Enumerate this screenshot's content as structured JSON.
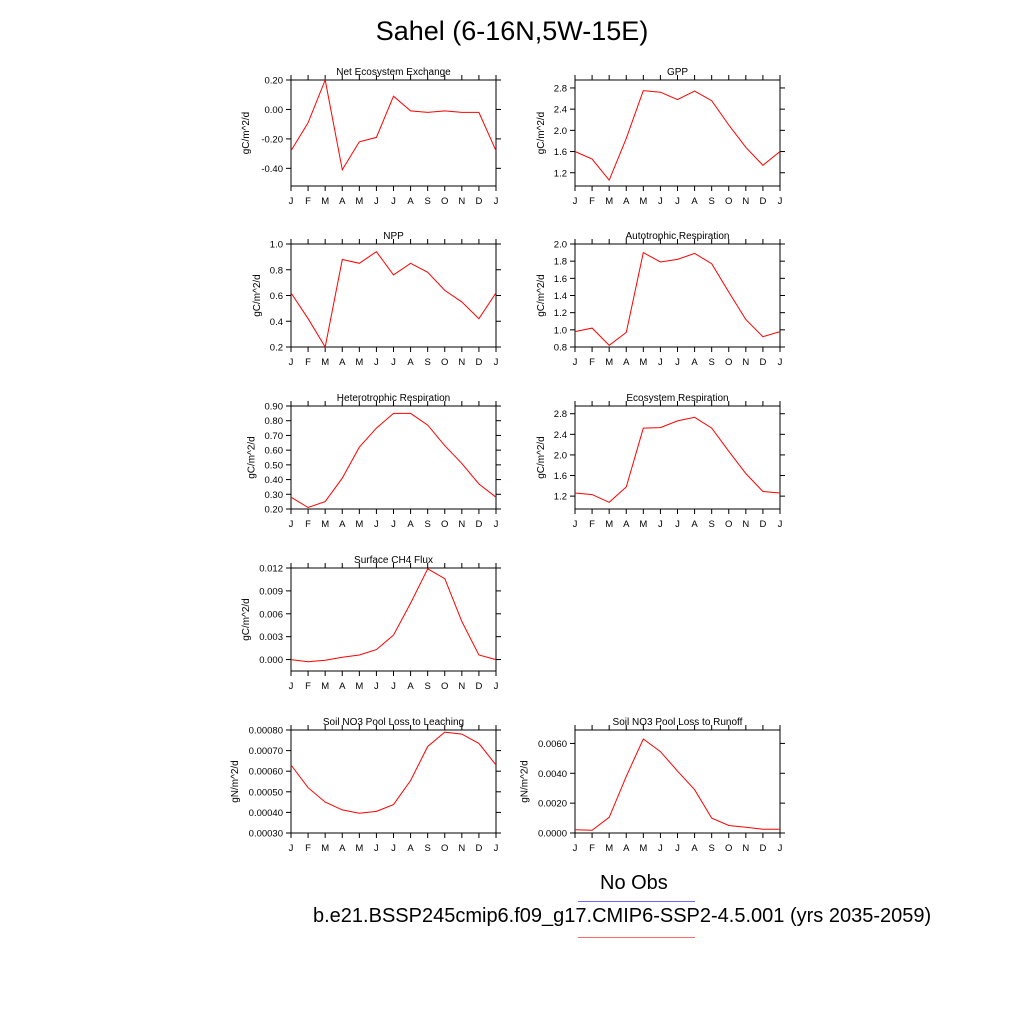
{
  "title": "Sahel (6-16N,5W-15E)",
  "legend": {
    "obs_label": "No Obs",
    "obs_color": "#6b6bff",
    "case_label": "b.e21.BSSP245cmip6.f09_g17.CMIP6-SSP2-4.5.001 (yrs 2035-2059)",
    "case_color": "#ff0000"
  },
  "chart_data": [
    {
      "type": "line",
      "title": "Net Ecosystem Exchange",
      "ylabel": "gC/m^2/d",
      "x": [
        "J",
        "F",
        "M",
        "A",
        "M",
        "J",
        "J",
        "A",
        "S",
        "O",
        "N",
        "D",
        "J"
      ],
      "values": [
        -0.28,
        -0.09,
        0.2,
        -0.41,
        -0.22,
        -0.19,
        0.09,
        -0.01,
        -0.02,
        -0.01,
        -0.02,
        -0.02,
        -0.28
      ],
      "ylim": [
        -0.52,
        0.2
      ],
      "yticks": [
        -0.4,
        -0.2,
        0.0,
        0.2
      ],
      "yticklabels": [
        "-0.40",
        "-0.20",
        "0.00",
        "0.20"
      ]
    },
    {
      "type": "line",
      "title": "GPP",
      "ylabel": "gC/m^2/d",
      "x": [
        "J",
        "F",
        "M",
        "A",
        "M",
        "J",
        "J",
        "A",
        "S",
        "O",
        "N",
        "D",
        "J"
      ],
      "values": [
        1.6,
        1.46,
        1.06,
        1.85,
        2.75,
        2.72,
        2.58,
        2.74,
        2.56,
        2.1,
        1.68,
        1.34,
        1.6
      ],
      "ylim": [
        0.95,
        2.95
      ],
      "yticks": [
        1.2,
        1.6,
        2.0,
        2.4,
        2.8
      ],
      "yticklabels": [
        "1.2",
        "1.6",
        "2.0",
        "2.4",
        "2.8"
      ]
    },
    {
      "type": "line",
      "title": "NPP",
      "ylabel": "gC/m^2/d",
      "x": [
        "J",
        "F",
        "M",
        "A",
        "M",
        "J",
        "J",
        "A",
        "S",
        "O",
        "N",
        "D",
        "J"
      ],
      "values": [
        0.62,
        0.42,
        0.2,
        0.88,
        0.85,
        0.94,
        0.76,
        0.85,
        0.78,
        0.64,
        0.55,
        0.42,
        0.62
      ],
      "ylim": [
        0.2,
        1.0
      ],
      "yticks": [
        0.2,
        0.4,
        0.6,
        0.8,
        1.0
      ],
      "yticklabels": [
        "0.2",
        "0.4",
        "0.6",
        "0.8",
        "1.0"
      ]
    },
    {
      "type": "line",
      "title": "Autotrophic Respiration",
      "ylabel": "gC/m^2/d",
      "x": [
        "J",
        "F",
        "M",
        "A",
        "M",
        "J",
        "J",
        "A",
        "S",
        "O",
        "N",
        "D",
        "J"
      ],
      "values": [
        0.98,
        1.02,
        0.82,
        0.97,
        1.9,
        1.79,
        1.82,
        1.89,
        1.77,
        1.44,
        1.12,
        0.92,
        0.98
      ],
      "ylim": [
        0.8,
        2.0
      ],
      "yticks": [
        0.8,
        1.0,
        1.2,
        1.4,
        1.6,
        1.8,
        2.0
      ],
      "yticklabels": [
        "0.8",
        "1.0",
        "1.2",
        "1.4",
        "1.6",
        "1.8",
        "2.0"
      ]
    },
    {
      "type": "line",
      "title": "Heterotrophic Respiration",
      "ylabel": "gC/m^2/d",
      "x": [
        "J",
        "F",
        "M",
        "A",
        "M",
        "J",
        "J",
        "A",
        "S",
        "O",
        "N",
        "D",
        "J"
      ],
      "values": [
        0.28,
        0.21,
        0.25,
        0.41,
        0.62,
        0.75,
        0.85,
        0.85,
        0.77,
        0.63,
        0.51,
        0.37,
        0.28
      ],
      "ylim": [
        0.2,
        0.9
      ],
      "yticks": [
        0.2,
        0.3,
        0.4,
        0.5,
        0.6,
        0.7,
        0.8,
        0.9
      ],
      "yticklabels": [
        "0.20",
        "0.30",
        "0.40",
        "0.50",
        "0.60",
        "0.70",
        "0.80",
        "0.90"
      ]
    },
    {
      "type": "line",
      "title": "Ecosystem Respiration",
      "ylabel": "gC/m^2/d",
      "x": [
        "J",
        "F",
        "M",
        "A",
        "M",
        "J",
        "J",
        "A",
        "S",
        "O",
        "N",
        "D",
        "J"
      ],
      "values": [
        1.26,
        1.23,
        1.08,
        1.38,
        2.52,
        2.53,
        2.66,
        2.73,
        2.52,
        2.07,
        1.64,
        1.29,
        1.26
      ],
      "ylim": [
        0.95,
        2.95
      ],
      "yticks": [
        1.2,
        1.6,
        2.0,
        2.4,
        2.8
      ],
      "yticklabels": [
        "1.2",
        "1.6",
        "2.0",
        "2.4",
        "2.8"
      ]
    },
    {
      "type": "line",
      "title": "Surface CH4 Flux",
      "ylabel": "gC/m^2/d",
      "x": [
        "J",
        "F",
        "M",
        "A",
        "M",
        "J",
        "J",
        "A",
        "S",
        "O",
        "N",
        "D",
        "J"
      ],
      "values": [
        0.0,
        -0.0003,
        -0.0001,
        0.0003,
        0.0006,
        0.0013,
        0.0032,
        0.0074,
        0.0119,
        0.0106,
        0.005,
        0.0006,
        0.0
      ],
      "ylim": [
        -0.0015,
        0.012
      ],
      "yticks": [
        0.0,
        0.003,
        0.006,
        0.009,
        0.012
      ],
      "yticklabels": [
        "0.000",
        "0.003",
        "0.006",
        "0.009",
        "0.012"
      ]
    },
    {
      "type": "line",
      "title": "Soil NO3 Pool Loss to Leaching",
      "ylabel": "gN/m^2/d",
      "x": [
        "J",
        "F",
        "M",
        "A",
        "M",
        "J",
        "J",
        "A",
        "S",
        "O",
        "N",
        "D",
        "J"
      ],
      "values": [
        0.00063,
        0.00052,
        0.00045,
        0.000412,
        0.000396,
        0.000405,
        0.000438,
        0.000555,
        0.00072,
        0.00079,
        0.00078,
        0.000735,
        0.00063
      ],
      "ylim": [
        0.0003,
        0.0008
      ],
      "yticks": [
        0.0003,
        0.0004,
        0.0005,
        0.0006,
        0.0007,
        0.0008
      ],
      "yticklabels": [
        "0.00030",
        "0.00040",
        "0.00050",
        "0.00060",
        "0.00070",
        "0.00080"
      ]
    },
    {
      "type": "line",
      "title": "Soil NO3 Pool Loss to Runoff",
      "ylabel": "gN/m^2/d",
      "x": [
        "J",
        "F",
        "M",
        "A",
        "M",
        "J",
        "J",
        "A",
        "S",
        "O",
        "N",
        "D",
        "J"
      ],
      "values": [
        0.00022,
        0.00018,
        0.00105,
        0.0038,
        0.0063,
        0.00545,
        0.00415,
        0.0029,
        0.001,
        0.0005,
        0.00038,
        0.00025,
        0.00025
      ],
      "ylim": [
        0.0,
        0.0069
      ],
      "yticks": [
        0.0,
        0.002,
        0.004,
        0.006
      ],
      "yticklabels": [
        "0.0000",
        "0.0020",
        "0.0040",
        "0.0060"
      ]
    }
  ]
}
